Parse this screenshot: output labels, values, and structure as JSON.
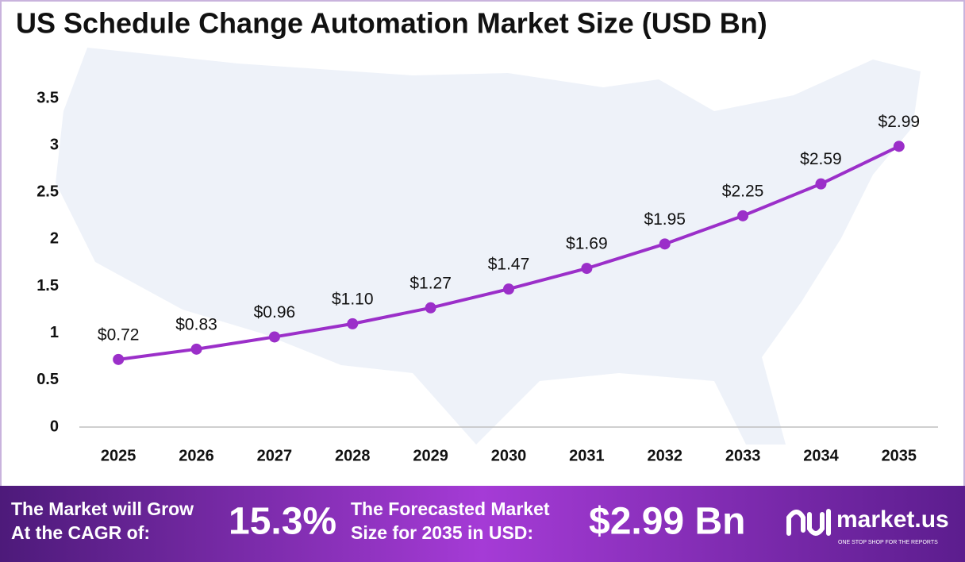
{
  "chart_data": {
    "type": "line",
    "title": "US Schedule Change Automation Market Size (USD Bn)",
    "categories": [
      "2025",
      "2026",
      "2027",
      "2028",
      "2029",
      "2030",
      "2031",
      "2032",
      "2033",
      "2034",
      "2035"
    ],
    "series": [
      {
        "color": "#9b2fc9",
        "values": [
          0.72,
          0.83,
          0.96,
          1.1,
          1.27,
          1.47,
          1.69,
          1.95,
          2.25,
          2.59,
          2.99
        ],
        "value_labels": [
          "$0.72",
          "$0.83",
          "$0.96",
          "$1.10",
          "$1.27",
          "$1.47",
          "$1.69",
          "$1.95",
          "$2.25",
          "$2.59",
          "$2.99"
        ]
      }
    ],
    "ylim": [
      0,
      3.5
    ],
    "yticks": [
      0,
      0.5,
      1,
      1.5,
      2,
      2.5,
      3,
      3.5
    ],
    "grid": false
  },
  "footer": {
    "cagr_text": [
      "The Market will Grow",
      "At the CAGR of:"
    ],
    "cagr": "15.3%",
    "forecast_text": [
      "The Forecasted Market",
      "Size for 2035 in USD:"
    ],
    "forecast": "$2.99 Bn",
    "logo": "market.us",
    "tagline": "ONE STOP SHOP FOR THE REPORTS"
  }
}
